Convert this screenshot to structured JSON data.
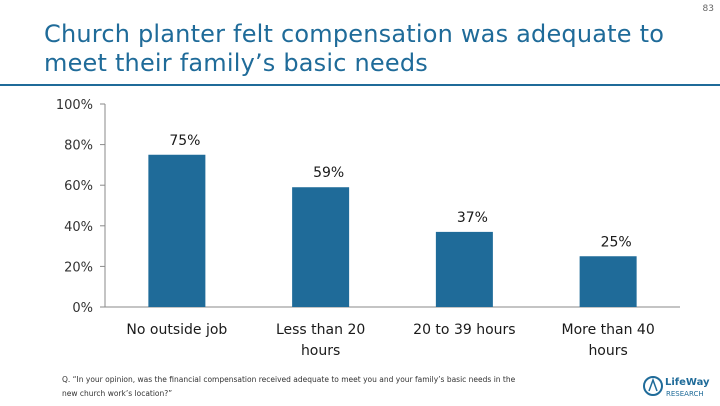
{
  "page": {
    "number": "83"
  },
  "title": "Church planter felt compensation was adequate to meet their family’s basic needs",
  "footnote": "Q. “In your opinion, was the financial compensation received adequate to meet you and your family’s basic needs in the new church work’s location?”",
  "logo": {
    "text": "LifeWay",
    "subtext": "RESEARCH"
  },
  "colors": {
    "bar": "#1f6b99",
    "title": "#1f6b99"
  },
  "chart_data": {
    "type": "bar",
    "categories": [
      "No outside job",
      "Less than 20 hours",
      "20 to 39 hours",
      "More than 40 hours"
    ],
    "category_lines": [
      [
        "No outside job"
      ],
      [
        "Less than 20",
        "hours"
      ],
      [
        "20 to 39 hours"
      ],
      [
        "More than 40",
        "hours"
      ]
    ],
    "values": [
      75,
      59,
      37,
      25
    ],
    "data_labels": [
      "75%",
      "59%",
      "37%",
      "25%"
    ],
    "yticks": [
      0,
      20,
      40,
      60,
      80,
      100
    ],
    "ytick_labels": [
      "0%",
      "20%",
      "40%",
      "60%",
      "80%",
      "100%"
    ],
    "ylim": [
      0,
      100
    ],
    "grid": false,
    "legend": "none"
  }
}
